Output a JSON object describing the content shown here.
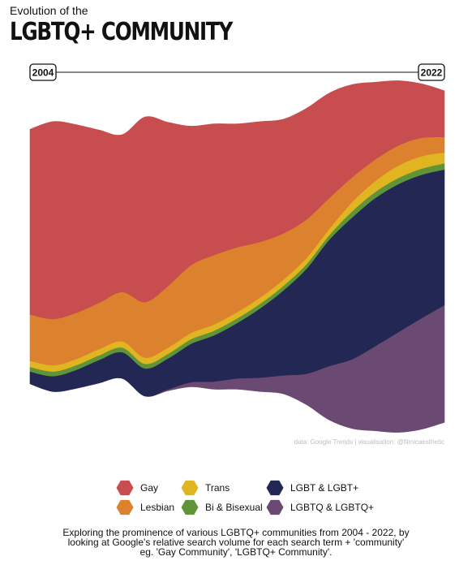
{
  "header": {
    "subtitle": "Evolution of the",
    "title": "LGBTQ+ COMMUNITY"
  },
  "timeline": {
    "start_label": "2004",
    "end_label": "2022"
  },
  "credit": "data: Google Trends | visualisation: @filmicaesthetic",
  "caption": {
    "line1": "Exploring the prominence of various LGBTQ+ communities from 2004 - 2022, by",
    "line2": "looking at Google's relative search volume for each search term + 'community'",
    "line3": "eg. 'Gay Community', 'LGBTQ+ Community'."
  },
  "chart_data": {
    "type": "area",
    "x": [
      2004,
      2005,
      2006,
      2007,
      2008,
      2009,
      2010,
      2011,
      2012,
      2013,
      2014,
      2015,
      2016,
      2017,
      2018,
      2019,
      2020,
      2021,
      2022
    ],
    "series": [
      {
        "name": "LGBTQ & LGBTQ+",
        "color": "#6a4a72",
        "values": [
          0,
          0,
          0,
          0,
          0,
          0,
          1,
          3,
          5,
          7,
          9,
          12,
          20,
          35,
          45,
          55,
          65,
          72,
          76
        ]
      },
      {
        "name": "LGBT & LGBT+",
        "color": "#232753",
        "values": [
          8,
          10,
          12,
          15,
          17,
          18,
          20,
          25,
          30,
          36,
          45,
          55,
          68,
          82,
          92,
          96,
          96,
          93,
          88
        ]
      },
      {
        "name": "Bi & Bisexual",
        "color": "#5f9438",
        "values": [
          3,
          3,
          3,
          3,
          3,
          3,
          3,
          3,
          3,
          3,
          3,
          3,
          3,
          3,
          4,
          4,
          4,
          4,
          4
        ]
      },
      {
        "name": "Trans",
        "color": "#e1b521",
        "values": [
          4,
          4,
          4,
          4,
          4,
          4,
          4,
          4,
          4,
          4,
          4,
          4,
          4,
          4,
          6,
          7,
          8,
          8,
          7
        ]
      },
      {
        "name": "Lesbian",
        "color": "#dc822e",
        "values": [
          30,
          30,
          30,
          30,
          32,
          36,
          40,
          44,
          45,
          42,
          36,
          30,
          25,
          20,
          16,
          14,
          13,
          12,
          10
        ]
      },
      {
        "name": "Gay",
        "color": "#c74d4f",
        "values": [
          120,
          128,
          122,
          112,
          102,
          120,
          106,
          90,
          85,
          80,
          78,
          74,
          72,
          68,
          60,
          50,
          42,
          35,
          30
        ]
      }
    ],
    "legend_position": "bottom",
    "grid": false
  },
  "legend": [
    {
      "label": "Gay",
      "color": "#c74d4f"
    },
    {
      "label": "Trans",
      "color": "#e1b521"
    },
    {
      "label": "LGBT & LGBT+",
      "color": "#232753"
    },
    {
      "label": "Lesbian",
      "color": "#dc822e"
    },
    {
      "label": "Bi & Bisexual",
      "color": "#5f9438"
    },
    {
      "label": "LGBTQ & LGBTQ+",
      "color": "#6a4a72"
    }
  ]
}
